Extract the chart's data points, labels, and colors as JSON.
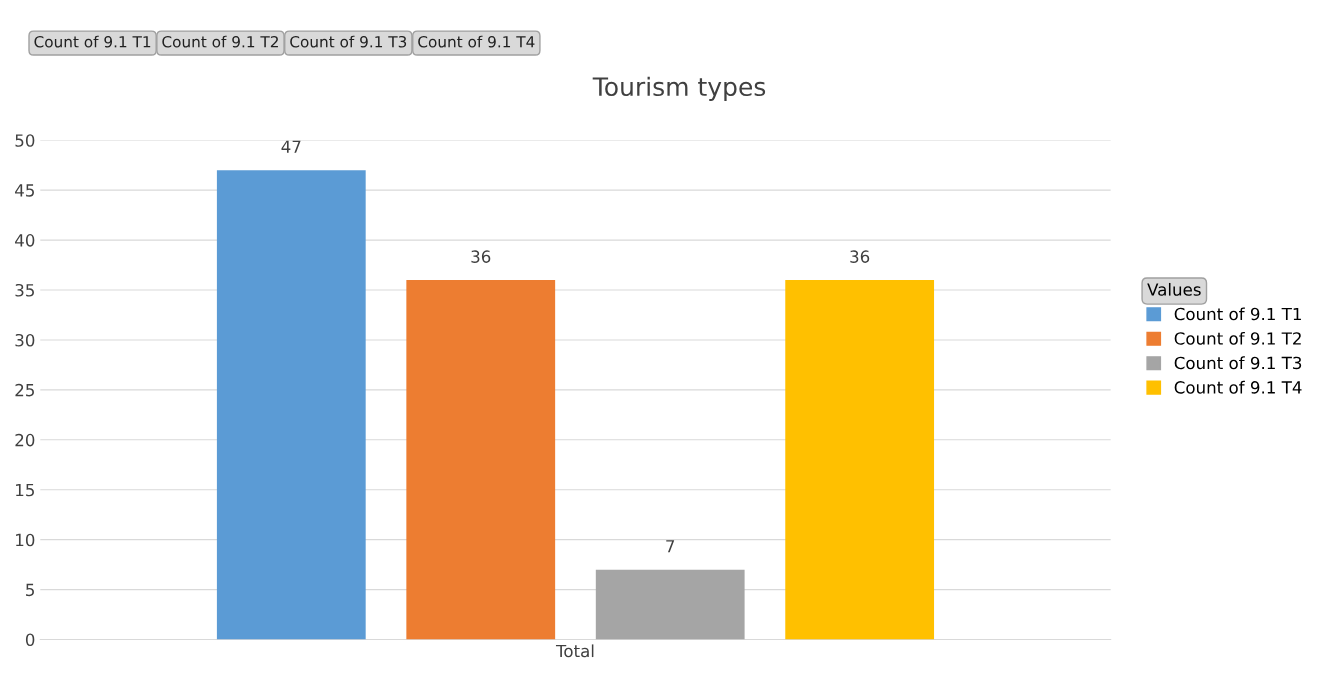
{
  "chart_data": {
    "type": "bar",
    "title": "Tourism types",
    "categories": [
      "Total"
    ],
    "series": [
      {
        "name": "Count of 9.1 T1",
        "color": "#5b9bd5",
        "values": [
          47
        ]
      },
      {
        "name": "Count of 9.1 T2",
        "color": "#ed7d31",
        "values": [
          36
        ]
      },
      {
        "name": "Count of 9.1 T3",
        "color": "#a5a5a5",
        "values": [
          7
        ]
      },
      {
        "name": "Count of 9.1 T4",
        "color": "#ffc000",
        "values": [
          36
        ]
      }
    ],
    "ylim": [
      0,
      50
    ],
    "yticks": [
      0,
      5,
      10,
      15,
      20,
      25,
      30,
      35,
      40,
      45,
      50
    ],
    "grid": "y",
    "legend": "right",
    "legend_title": "Values",
    "data_labels": true,
    "annotations": [
      "Count of 9.1 T1",
      "Count of 9.1 T2",
      "Count of 9.1 T3",
      "Count of 9.1 T4"
    ]
  }
}
